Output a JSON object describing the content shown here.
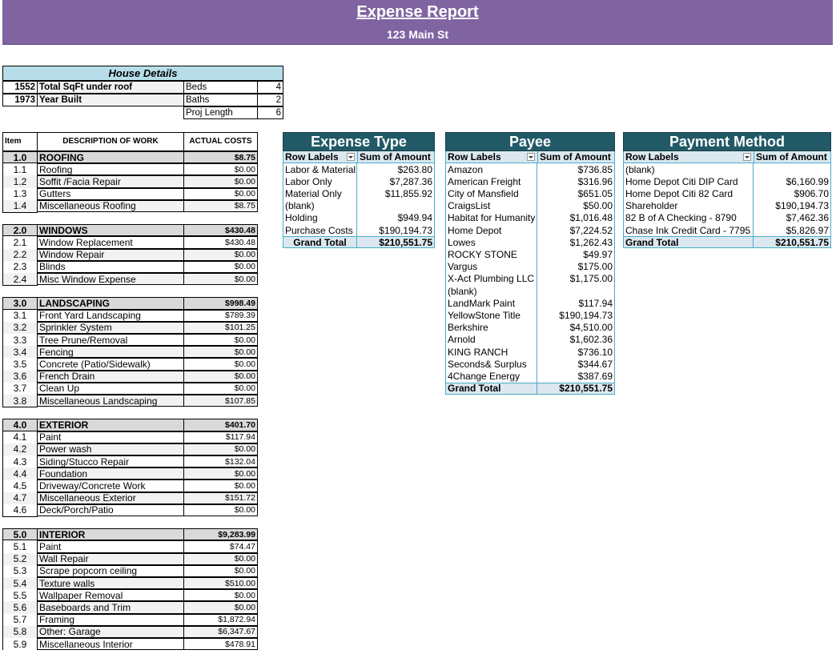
{
  "header": {
    "title": "Expense Report",
    "subtitle": "123 Main St"
  },
  "house_details": {
    "title": "House Details",
    "rows": [
      [
        "1552",
        "Total SqFt under roof",
        "Beds",
        "4"
      ],
      [
        "1973",
        "Year Built",
        "Baths",
        "2"
      ],
      [
        "Proj Length",
        "6"
      ]
    ]
  },
  "work_table": {
    "headers": [
      "Item",
      "DESCRIPTION OF WORK",
      "ACTUAL COSTS"
    ],
    "sections": [
      {
        "item": "1.0",
        "name": "ROOFING",
        "total": "$8.75",
        "rows": [
          [
            "1.1",
            "Roofing",
            "$0.00"
          ],
          [
            "1.2",
            "Soffit /Facia Repair",
            "$0.00"
          ],
          [
            "1.3",
            "Gutters",
            "$0.00"
          ],
          [
            "1.4",
            "Miscellaneous Roofing",
            "$8.75"
          ]
        ]
      },
      {
        "item": "2.0",
        "name": "WINDOWS",
        "total": "$430.48",
        "rows": [
          [
            "2.1",
            "Window Replacement",
            "$430.48"
          ],
          [
            "2.2",
            "Window Repair",
            "$0.00"
          ],
          [
            "2.3",
            "Blinds",
            "$0.00"
          ],
          [
            "2.4",
            "Misc Window Expense",
            "$0.00"
          ]
        ]
      },
      {
        "item": "3.0",
        "name": "LANDSCAPING",
        "total": "$998.49",
        "rows": [
          [
            "3.1",
            "Front Yard Landscaping",
            "$789.39"
          ],
          [
            "3.2",
            "Sprinkler System",
            "$101.25"
          ],
          [
            "3.3",
            "Tree Prune/Removal",
            "$0.00"
          ],
          [
            "3.4",
            "Fencing",
            "$0.00"
          ],
          [
            "3.5",
            "Concrete (Patio/Sidewalk)",
            "$0.00"
          ],
          [
            "3.6",
            "French Drain",
            "$0.00"
          ],
          [
            "3.7",
            "Clean Up",
            "$0.00"
          ],
          [
            "3.8",
            "Miscellaneous Landscaping",
            "$107.85"
          ]
        ]
      },
      {
        "item": "4.0",
        "name": "EXTERIOR",
        "total": "$401.70",
        "rows": [
          [
            "4.1",
            "Paint",
            "$117.94"
          ],
          [
            "4.2",
            "Power wash",
            "$0.00"
          ],
          [
            "4.3",
            "Siding/Stucco Repair",
            "$132.04"
          ],
          [
            "4.4",
            "Foundation",
            "$0.00"
          ],
          [
            "4.5",
            "Driveway/Concrete Work",
            "$0.00"
          ],
          [
            "4.7",
            "Miscellaneous Exterior",
            "$151.72"
          ],
          [
            "4.6",
            "Deck/Porch/Patio",
            "$0.00"
          ]
        ]
      },
      {
        "item": "5.0",
        "name": "INTERIOR",
        "total": "$9,283.99",
        "rows": [
          [
            "5.1",
            "Paint",
            "$74.47"
          ],
          [
            "5.2",
            "Wall Repair",
            "$0.00"
          ],
          [
            "5.3",
            "Scrape popcorn ceiling",
            "$0.00"
          ],
          [
            "5.4",
            "Texture walls",
            "$510.00"
          ],
          [
            "5.5",
            "Wallpaper Removal",
            "$0.00"
          ],
          [
            "5.6",
            "Baseboards and Trim",
            "$0.00"
          ],
          [
            "5.7",
            "Framing",
            "$1,872.94"
          ],
          [
            "5.8",
            "Other: Garage",
            "$6,347.67"
          ],
          [
            "5.9",
            "Miscellaneous Interior",
            "$478.91"
          ]
        ]
      }
    ]
  },
  "pivots": [
    {
      "title": "Expense Type",
      "headers": [
        "Row Labels",
        "Sum of Amount"
      ],
      "rows": [
        [
          "Labor & Material",
          "$263.80"
        ],
        [
          "Labor Only",
          "$7,287.36"
        ],
        [
          "Material Only",
          "$11,855.92"
        ],
        [
          "(blank)"
        ],
        [
          "Holding",
          "$949.94"
        ],
        [
          "Purchase Costs",
          "$190,194.73"
        ]
      ],
      "total": [
        "Grand Total",
        "$210,551.75"
      ]
    },
    {
      "title": "Payee",
      "headers": [
        "Row Labels",
        "Sum of Amount"
      ],
      "rows": [
        [
          "Amazon",
          "$736.85"
        ],
        [
          "American Freight",
          "$316.96"
        ],
        [
          "City of Mansfield",
          "$651.05"
        ],
        [
          "CraigsList",
          "$50.00"
        ],
        [
          "Habitat for Humanity",
          "$1,016.48"
        ],
        [
          "Home Depot",
          "$7,224.52"
        ],
        [
          "Lowes",
          "$1,262.43"
        ],
        [
          "ROCKY STONE",
          "$49.97"
        ],
        [
          "Vargus",
          "$175.00"
        ],
        [
          "X-Act Plumbing LLC",
          "$1,175.00"
        ],
        [
          "(blank)"
        ],
        [
          "LandMark Paint",
          "$117.94"
        ],
        [
          "YellowStone Title",
          "$190,194.73"
        ],
        [
          "Berkshire",
          "$4,510.00"
        ],
        [
          "Arnold",
          "$1,602.36"
        ],
        [
          "KING RANCH",
          "$736.10"
        ],
        [
          "Seconds& Surplus",
          "$344.67"
        ],
        [
          "4Change Energy",
          "$387.69"
        ]
      ],
      "total": [
        "Grand Total",
        "$210,551.75"
      ]
    },
    {
      "title": "Payment Method",
      "headers": [
        "Row Labels",
        "Sum of Amount"
      ],
      "rows": [
        [
          "(blank)"
        ],
        [
          "Home Depot Citi DIP Card",
          "$6,160.99"
        ],
        [
          "Home Depot Citi 82 Card",
          "$906.70"
        ],
        [
          "Shareholder",
          "$190,194.73"
        ],
        [
          "82 B of A Checking - 8790",
          "$7,462.36"
        ],
        [
          "Chase Ink Credit Card - 7795",
          "$5,826.97"
        ]
      ],
      "total": [
        "Grand Total",
        "$210,551.75"
      ]
    }
  ]
}
